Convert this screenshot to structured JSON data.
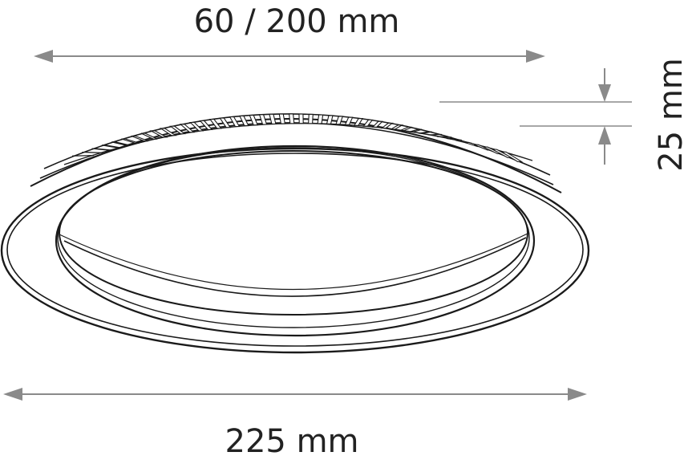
{
  "dimensions": {
    "top_label": "60 / 200 mm",
    "bottom_label": "225 mm",
    "side_label": "25 mm"
  },
  "colors": {
    "outline": "#1a1a1a",
    "dimension_line": "#8a8a8a",
    "text": "#222222",
    "background": "#ffffff"
  }
}
